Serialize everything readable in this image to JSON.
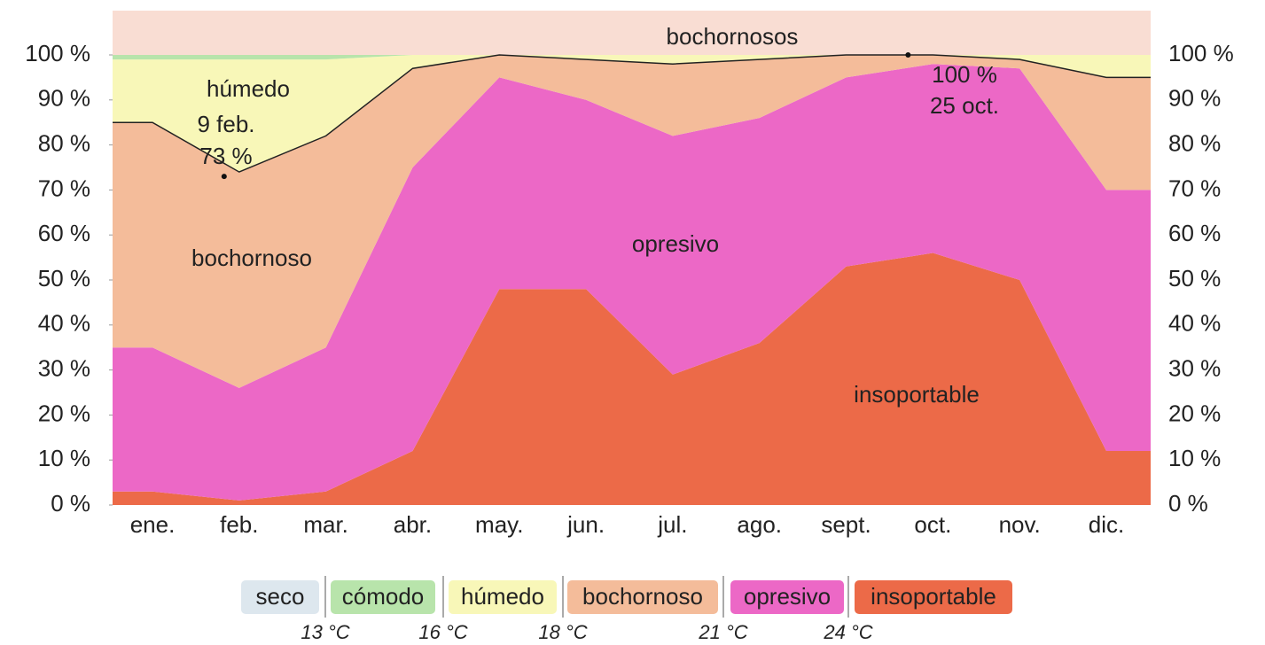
{
  "chart_data": {
    "type": "stacked_area",
    "top_band_label": "bochornosos",
    "categories": [
      "ene.",
      "feb.",
      "mar.",
      "abr.",
      "may.",
      "jun.",
      "jul.",
      "ago.",
      "sept.",
      "oct.",
      "nov.",
      "dic."
    ],
    "series": [
      {
        "name": "insoportable",
        "color": "#ec6a48",
        "values": [
          3,
          1,
          3,
          12,
          48,
          48,
          29,
          36,
          53,
          56,
          50,
          12
        ]
      },
      {
        "name": "opresivo",
        "color": "#ec68c6",
        "values": [
          32,
          25,
          32,
          63,
          47,
          42,
          53,
          50,
          42,
          42,
          47,
          58
        ]
      },
      {
        "name": "bochornoso",
        "color": "#f4bc9a",
        "values": [
          50,
          48,
          47,
          22,
          5,
          9,
          16,
          13,
          5,
          2,
          2,
          25
        ]
      },
      {
        "name": "húmedo",
        "color": "#f8f7b8",
        "values": [
          14,
          25,
          17,
          3,
          0,
          1,
          2,
          1,
          0,
          0,
          1,
          5
        ]
      },
      {
        "name": "cómodo",
        "color": "#b8e4ab",
        "values": [
          1,
          1,
          1,
          0,
          0,
          0,
          0,
          0,
          0,
          0,
          0,
          0
        ]
      },
      {
        "name": "seco",
        "color": "#dde7ee",
        "values": [
          0,
          0,
          0,
          0,
          0,
          0,
          0,
          0,
          0,
          0,
          0,
          0
        ]
      }
    ],
    "legend_order": [
      5,
      4,
      3,
      2,
      1,
      0
    ],
    "legend_thresholds": [
      "13 °C",
      "16 °C",
      "18 °C",
      "21 °C",
      "24 °C"
    ],
    "area_labels": [
      "húmedo",
      "bochornoso",
      "opresivo",
      "insoportable"
    ],
    "annotations": [
      {
        "label": "9 feb.",
        "value": 73,
        "value_label": "73 %",
        "x": "feb."
      },
      {
        "label": "25 oct.",
        "value": 100,
        "value_label": "100 %",
        "x": "oct."
      }
    ],
    "ylim": [
      0,
      100
    ],
    "yticks": [
      {
        "value": 0,
        "label": "0 %"
      },
      {
        "value": 10,
        "label": "10 %"
      },
      {
        "value": 20,
        "label": "20 %"
      },
      {
        "value": 30,
        "label": "30 %"
      },
      {
        "value": 40,
        "label": "40 %"
      },
      {
        "value": 50,
        "label": "50 %"
      },
      {
        "value": 60,
        "label": "60 %"
      },
      {
        "value": 70,
        "label": "70 %"
      },
      {
        "value": 80,
        "label": "80 %"
      },
      {
        "value": 90,
        "label": "90 %"
      },
      {
        "value": 100,
        "label": "100 %"
      }
    ]
  }
}
